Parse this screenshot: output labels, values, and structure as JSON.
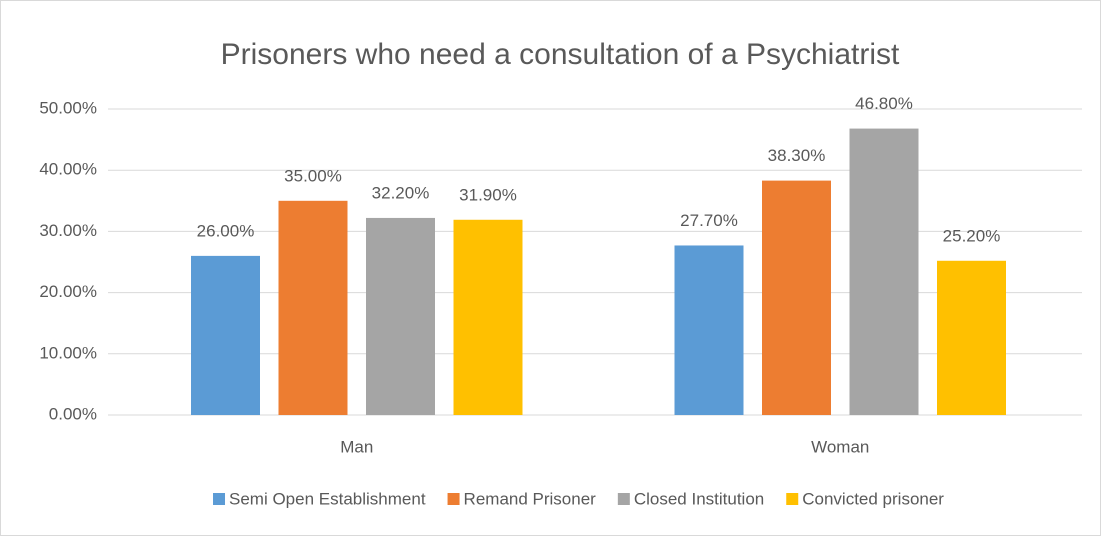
{
  "chart_data": {
    "type": "bar",
    "title": "Prisoners who need a consultation of a Psychiatrist",
    "categories": [
      "Man",
      "Woman"
    ],
    "series": [
      {
        "name": "Semi Open Establishment",
        "color": "#5b9bd5",
        "values": [
          26,
          27.7
        ],
        "value_labels": [
          "26.00%",
          "27.70%"
        ]
      },
      {
        "name": "Remand Prisoner",
        "color": "#ed7d31",
        "values": [
          35,
          38.3
        ],
        "value_labels": [
          "35.00%",
          "38.30%"
        ]
      },
      {
        "name": "Closed Institution",
        "color": "#a5a5a5",
        "values": [
          32.2,
          46.8
        ],
        "value_labels": [
          "32.20%",
          "46.80%"
        ]
      },
      {
        "name": "Convicted prisoner",
        "color": "#ffc000",
        "values": [
          31.9,
          25.2
        ],
        "value_labels": [
          "31.90%",
          "25.20%"
        ]
      }
    ],
    "ylim": [
      0,
      50
    ],
    "yticks": [
      {
        "value": 0,
        "label": "0.00%"
      },
      {
        "value": 10,
        "label": "10.00%"
      },
      {
        "value": 20,
        "label": "20.00%"
      },
      {
        "value": 30,
        "label": "30.00%"
      },
      {
        "value": 40,
        "label": "40.00%"
      },
      {
        "value": 50,
        "label": "50.00%"
      }
    ],
    "grid": true,
    "legend": "bottom"
  }
}
